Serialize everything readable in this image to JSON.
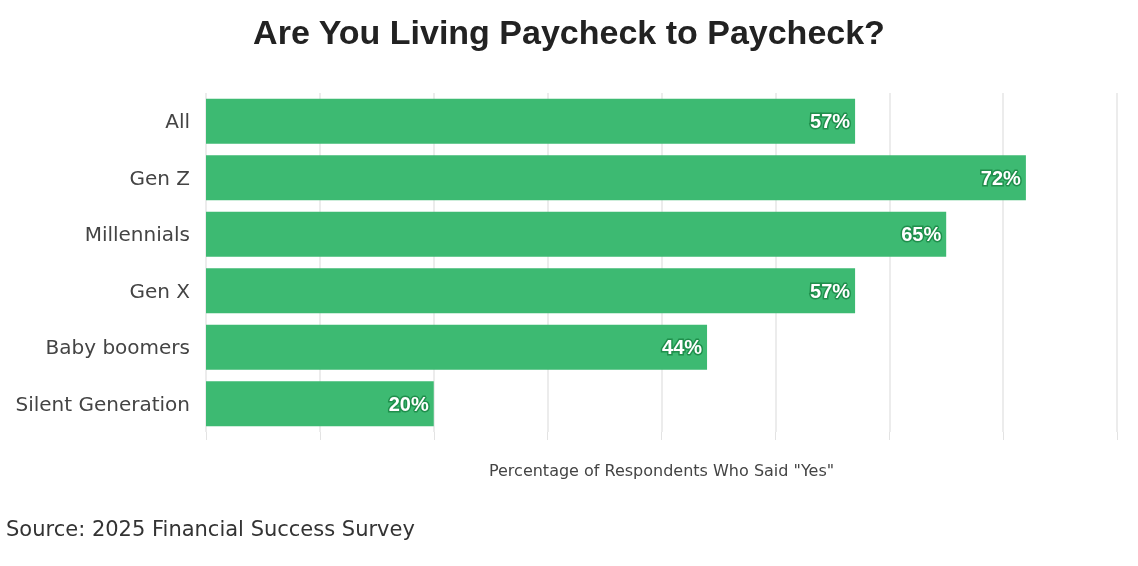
{
  "chart_data": {
    "type": "bar",
    "orientation": "horizontal",
    "title": "Are You Living Paycheck to Paycheck?",
    "xlabel": "Percentage of Respondents Who Said \"Yes\"",
    "categories": [
      "All",
      "Gen Z",
      "Millennials",
      "Gen X",
      "Baby boomers",
      "Silent Generation"
    ],
    "values": [
      57,
      72,
      65,
      57,
      44,
      20
    ],
    "value_labels": [
      "57%",
      "72%",
      "65%",
      "57%",
      "44%",
      "20%"
    ],
    "color": "#3dba72",
    "xlim": [
      0,
      80
    ],
    "xticks": [
      {
        "value": 0,
        "label": null
      },
      {
        "value": 10,
        "label": null
      },
      {
        "value": 20,
        "label": null
      },
      {
        "value": 30,
        "label": null
      },
      {
        "value": 40,
        "label": null
      },
      {
        "value": 50,
        "label": null
      },
      {
        "value": 60,
        "label": null
      },
      {
        "value": 70,
        "label": null
      },
      {
        "value": 80,
        "label": null
      }
    ],
    "grid": "x",
    "tick_labels": "y",
    "annotations": [
      "Source: 2025 Financial Success Survey"
    ]
  }
}
